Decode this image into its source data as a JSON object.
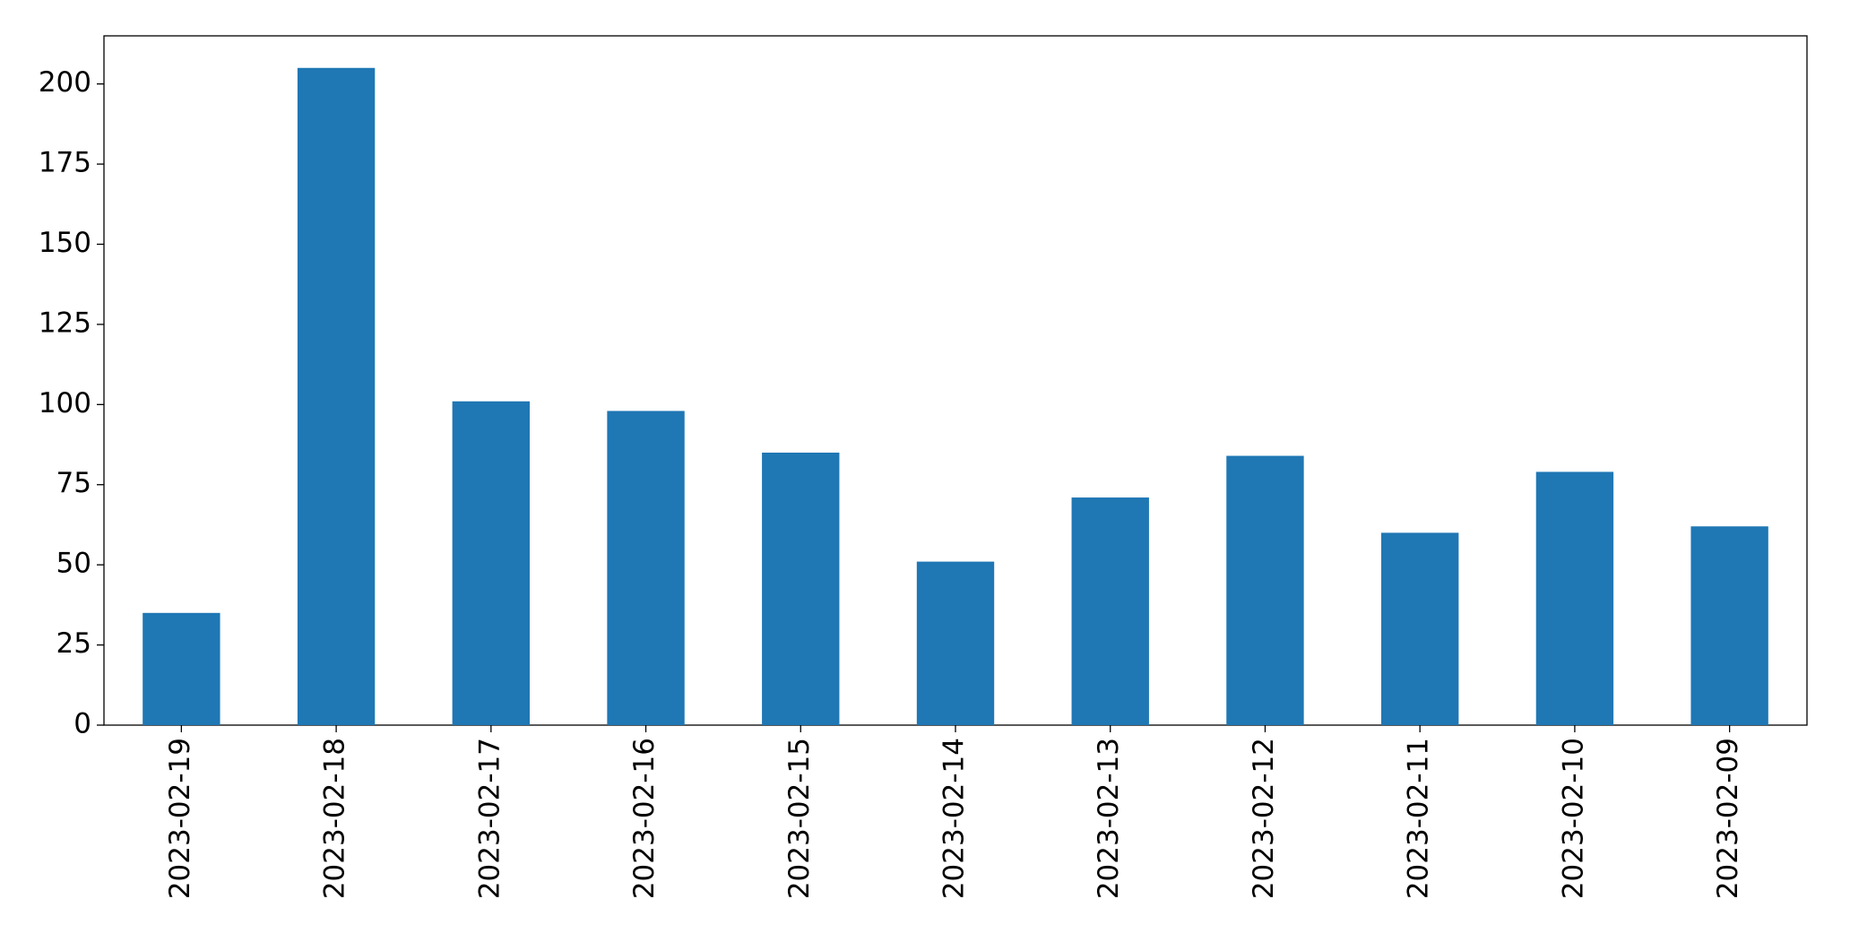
{
  "chart_data": {
    "type": "bar",
    "categories": [
      "2023-02-19",
      "2023-02-18",
      "2023-02-17",
      "2023-02-16",
      "2023-02-15",
      "2023-02-14",
      "2023-02-13",
      "2023-02-12",
      "2023-02-11",
      "2023-02-10",
      "2023-02-09"
    ],
    "values": [
      35,
      205,
      101,
      98,
      85,
      51,
      71,
      84,
      60,
      79,
      62
    ],
    "color": "#1f77b4",
    "ylim": [
      0,
      215
    ],
    "yticks": [
      0,
      25,
      50,
      75,
      100,
      125,
      150,
      175,
      200
    ],
    "grid": false
  }
}
